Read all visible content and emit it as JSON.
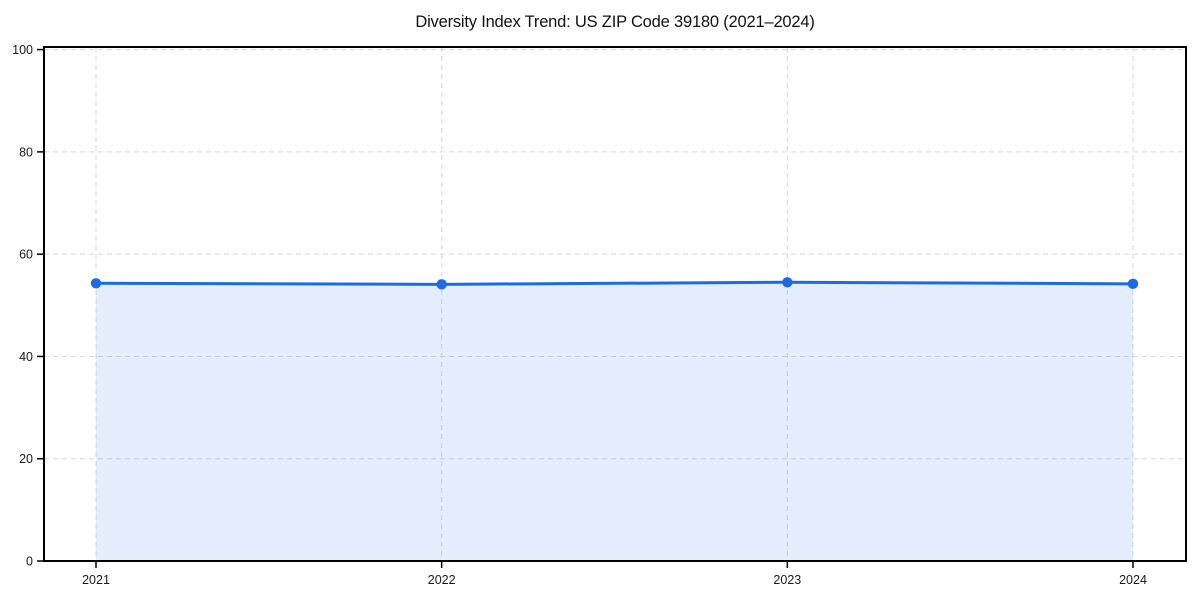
{
  "chart_data": {
    "type": "area",
    "title": "Diversity Index Trend: US ZIP Code 39180 (2021–2024)",
    "x": [
      2021,
      2022,
      2023,
      2024
    ],
    "xtick_labels": [
      "2021",
      "2022",
      "2023",
      "2024"
    ],
    "series": [
      {
        "name": "Diversity Index",
        "values": [
          54.3,
          54.1,
          54.5,
          54.2
        ]
      }
    ],
    "xlabel": "",
    "ylabel": "",
    "ylim": [
      0,
      100
    ],
    "yticks": [
      0,
      20,
      40,
      60,
      80,
      100
    ],
    "grid": "dashed-both-axes",
    "legend": "none",
    "area_fill_to_zero": true,
    "colors": {
      "line": "#1b6ce4",
      "marker": "#1b6ce4",
      "fill": "rgba(27,108,228,0.12)",
      "grid": "#d9d9d9",
      "axis": "#000000",
      "tick_label": "#1a1a1a",
      "title": "#111111",
      "background": "#ffffff"
    }
  }
}
